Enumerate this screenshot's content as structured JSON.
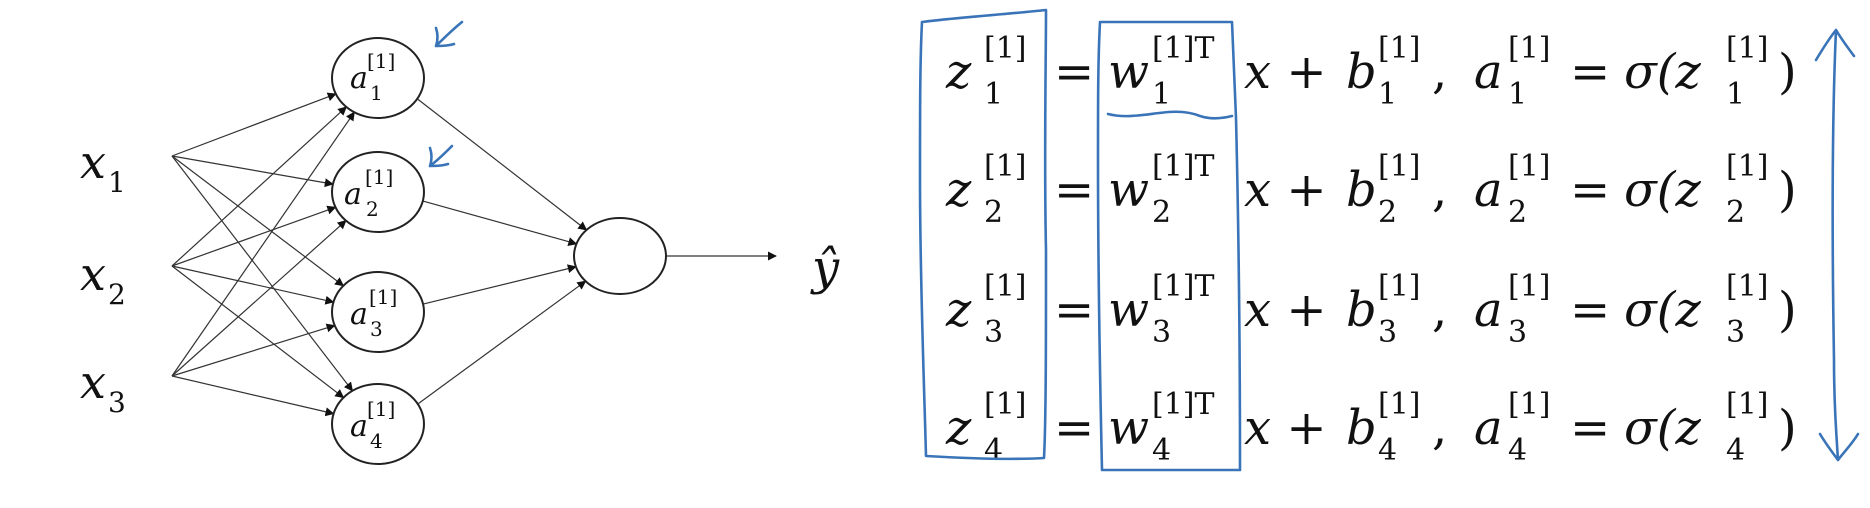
{
  "inputs": [
    {
      "base": "x",
      "sub": "1"
    },
    {
      "base": "x",
      "sub": "2"
    },
    {
      "base": "x",
      "sub": "3"
    }
  ],
  "hidden": [
    {
      "base": "a",
      "sup": "[1]",
      "sub": "1"
    },
    {
      "base": "a",
      "sup": "[1]",
      "sub": "2"
    },
    {
      "base": "a",
      "sup": "[1]",
      "sub": "3"
    },
    {
      "base": "a",
      "sup": "[1]",
      "sub": "4"
    }
  ],
  "output": {
    "label": "ŷ"
  },
  "equations": [
    {
      "z": "z",
      "z_sup": "[1]",
      "z_sub": "1",
      "eq": "=",
      "w": "w",
      "w_sup": "[1]T",
      "w_sub": "1",
      "x": "x +",
      "b": "b",
      "b_sup": "[1]",
      "b_sub": "1",
      "comma": ",",
      "a": "a",
      "a_sup": "[1]",
      "a_sub": "1",
      "eq2": "=",
      "sig": "σ(z",
      "s_sup": "[1]",
      "s_sub": "1",
      "close": ")"
    },
    {
      "z": "z",
      "z_sup": "[1]",
      "z_sub": "2",
      "eq": "=",
      "w": "w",
      "w_sup": "[1]T",
      "w_sub": "2",
      "x": "x +",
      "b": "b",
      "b_sup": "[1]",
      "b_sub": "2",
      "comma": ",",
      "a": "a",
      "a_sup": "[1]",
      "a_sub": "2",
      "eq2": "=",
      "sig": "σ(z",
      "s_sup": "[1]",
      "s_sub": "2",
      "close": ")"
    },
    {
      "z": "z",
      "z_sup": "[1]",
      "z_sub": "3",
      "eq": "=",
      "w": "w",
      "w_sup": "[1]T",
      "w_sub": "3",
      "x": "x +",
      "b": "b",
      "b_sup": "[1]",
      "b_sub": "3",
      "comma": ",",
      "a": "a",
      "a_sup": "[1]",
      "a_sub": "3",
      "eq2": "=",
      "sig": "σ(z",
      "s_sup": "[1]",
      "s_sub": "3",
      "close": ")"
    },
    {
      "z": "z",
      "z_sup": "[1]",
      "z_sub": "4",
      "eq": "=",
      "w": "w",
      "w_sup": "[1]T",
      "w_sub": "4",
      "x": "x +",
      "b": "b",
      "b_sup": "[1]",
      "b_sub": "4",
      "comma": ",",
      "a": "a",
      "a_sup": "[1]",
      "a_sub": "4",
      "eq2": "=",
      "sig": "σ(z",
      "s_sup": "[1]",
      "s_sub": "4",
      "close": ")"
    }
  ],
  "colors": {
    "ink": "#111111",
    "annotation": "#3a74b8"
  }
}
